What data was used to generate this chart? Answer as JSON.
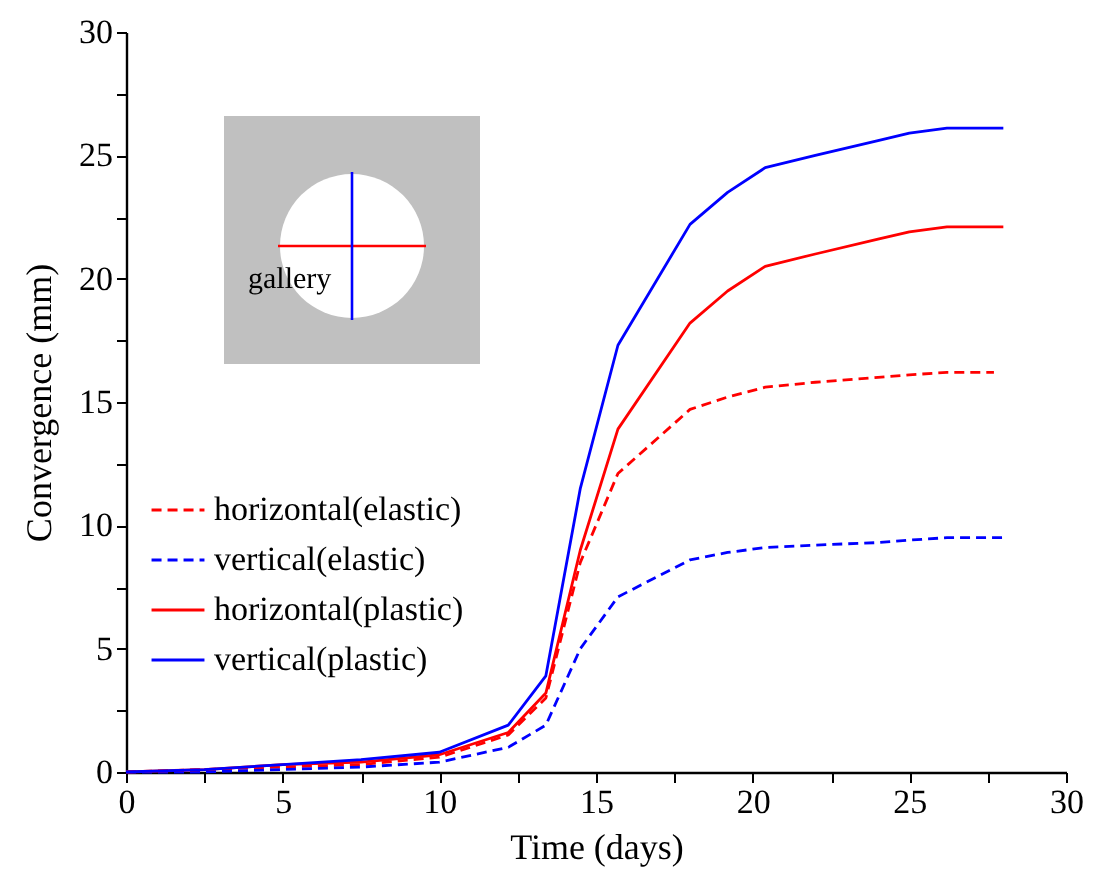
{
  "chart_data": {
    "type": "line",
    "xlabel": "Time (days)",
    "ylabel": "Convergence (mm)",
    "x": [
      0,
      2.5,
      5,
      7.5,
      10,
      12.2,
      13.4,
      14.5,
      15.7,
      18,
      19.2,
      20.4,
      22,
      24,
      25,
      26.2,
      28
    ],
    "xlim": [
      0,
      30
    ],
    "ylim": [
      0,
      30
    ],
    "xticks": [
      0,
      {
        "value": 2.5,
        "label": null
      },
      5,
      {
        "value": 7.5,
        "label": null
      },
      10,
      {
        "value": 12.5,
        "label": null
      },
      15,
      {
        "value": 17.5,
        "label": null
      },
      20,
      {
        "value": 22.5,
        "label": null
      },
      25,
      {
        "value": 27.5,
        "label": null
      },
      30
    ],
    "yticks": [
      0,
      {
        "value": 2.5,
        "label": null
      },
      5,
      {
        "value": 7.5,
        "label": null
      },
      10,
      {
        "value": 12.5,
        "label": null
      },
      15,
      {
        "value": 17.5,
        "label": null
      },
      20,
      {
        "value": 22.5,
        "label": null
      },
      25,
      {
        "value": 27.5,
        "label": null
      },
      30
    ],
    "grid": false,
    "legend": "left",
    "marker": "none",
    "annotations": [
      "gallery"
    ],
    "series": [
      {
        "name": "horizontal(elastic)",
        "color": "#ff0000",
        "line_style": "dashed",
        "x": [
          0,
          2.5,
          5,
          7.5,
          10,
          12.2,
          13.4,
          14.5,
          15.7,
          18,
          19.2,
          20.4,
          22,
          24,
          25,
          26.2,
          27.7
        ],
        "values": [
          0,
          0.1,
          0.2,
          0.3,
          0.6,
          1.5,
          3.0,
          8.5,
          12.1,
          14.7,
          15.2,
          15.6,
          15.8,
          16,
          16.1,
          16.2,
          16.2
        ]
      },
      {
        "name": "vertical(elastic)",
        "color": "#0000ff",
        "line_style": "dashed",
        "values": [
          0,
          0,
          0.1,
          0.2,
          0.4,
          1,
          1.9,
          5,
          7.1,
          8.6,
          8.9,
          9.1,
          9.2,
          9.3,
          9.4,
          9.5,
          9.5
        ]
      },
      {
        "name": "horizontal(plastic)",
        "color": "#ff0000",
        "line_style": "solid",
        "values": [
          0,
          0.1,
          0.3,
          0.4,
          0.7,
          1.6,
          3.2,
          9,
          13.9,
          18.2,
          19.5,
          20.5,
          21,
          21.6,
          21.9,
          22.1,
          22.1
        ]
      },
      {
        "name": "vertical(plastic)",
        "color": "#0000ff",
        "line_style": "solid",
        "values": [
          0,
          0.1,
          0.3,
          0.5,
          0.8,
          1.9,
          3.9,
          11.5,
          17.3,
          22.2,
          23.5,
          24.5,
          25,
          25.6,
          25.9,
          26.1,
          26.1
        ]
      }
    ]
  }
}
